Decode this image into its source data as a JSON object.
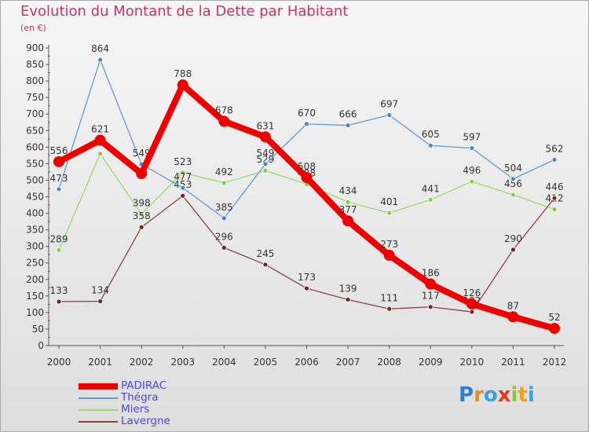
{
  "title": "Evolution du Montant de la Dette par Habitant",
  "subtitle": "(en €)",
  "brand": {
    "letters": [
      "P",
      "r",
      "o",
      "x",
      "i",
      "t",
      "i"
    ],
    "colors": [
      "#2f7fd1",
      "#e8901a",
      "#3aa0e0",
      "#e83a1a",
      "#8cc63f",
      "#f0a020",
      "#3aa0e0"
    ]
  },
  "chart_data": {
    "type": "line",
    "title": "Evolution du Montant de la Dette par Habitant",
    "ylabel": "(en €)",
    "xlabel": "",
    "x": [
      "2000",
      "2001",
      "2002",
      "2003",
      "2004",
      "2005",
      "2006",
      "2007",
      "2008",
      "2009",
      "2010",
      "2011",
      "2012"
    ],
    "ylim": [
      0,
      900
    ],
    "yticks": [
      0,
      50,
      100,
      150,
      200,
      250,
      300,
      350,
      400,
      450,
      500,
      550,
      600,
      650,
      700,
      750,
      800,
      850,
      900
    ],
    "grid": false,
    "legend": "bottom-left",
    "series": [
      {
        "name": "Miers",
        "color": "#99dd66",
        "dot": "#88cc44",
        "values": [
          289,
          580,
          398,
          523,
          492,
          529,
          488,
          434,
          401,
          441,
          496,
          456,
          412
        ],
        "labels": [
          "289",
          "",
          "398",
          "523",
          "492",
          "529",
          "488",
          "434",
          "401",
          "441",
          "496",
          "456",
          "412"
        ]
      },
      {
        "name": "Lavergne",
        "color": "#884444",
        "dot": "#772222",
        "values": [
          133,
          134,
          358,
          453,
          296,
          245,
          173,
          139,
          111,
          117,
          102,
          290,
          446
        ],
        "labels": [
          "133",
          "134",
          "358",
          "453",
          "296",
          "245",
          "173",
          "139",
          "111",
          "117",
          "102",
          "290",
          "446"
        ]
      },
      {
        "name": "Thégra",
        "color": "#6699cc",
        "dot": "#4488cc",
        "values": [
          473,
          864,
          549,
          477,
          385,
          549,
          670,
          666,
          697,
          605,
          597,
          504,
          562
        ],
        "labels": [
          "473",
          "864",
          "549",
          "477",
          "385",
          "549",
          "670",
          "666",
          "697",
          "605",
          "597",
          "504",
          "562"
        ]
      },
      {
        "name": "PADIRAC",
        "color": "#ee0000",
        "dot": "#ee0000",
        "values": [
          556,
          621,
          520,
          788,
          678,
          631,
          508,
          377,
          273,
          186,
          126,
          87,
          52
        ],
        "labels": [
          "556",
          "621",
          "",
          "788",
          "678",
          "631",
          "508",
          "377",
          "273",
          "186",
          "126",
          "87",
          "52"
        ]
      }
    ],
    "legend_order": [
      "PADIRAC",
      "Thégra",
      "Miers",
      "Lavergne"
    ]
  }
}
